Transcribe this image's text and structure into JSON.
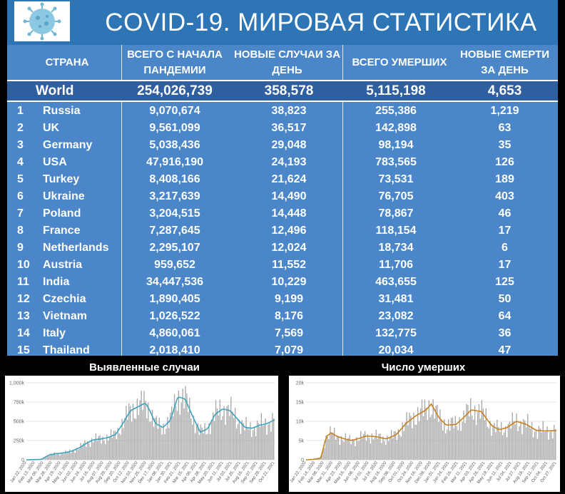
{
  "header": {
    "title": "COVID-19. МИРОВАЯ СТАТИСТИКА",
    "logo_icon": "coronavirus-icon"
  },
  "table": {
    "columns": [
      "СТРАНА",
      "ВСЕГО С НАЧАЛА ПАНДЕМИИ",
      "НОВЫЕ СЛУЧАИ ЗА ДЕНЬ",
      "ВСЕГО УМЕРШИХ",
      "НОВЫЕ СМЕРТИ ЗА ДЕНЬ"
    ],
    "world": {
      "country": "World",
      "total": "254,026,739",
      "new": "358,578",
      "deaths": "5,115,198",
      "new_deaths": "4,653"
    },
    "rows": [
      {
        "rank": "1",
        "country": "Russia",
        "total": "9,070,674",
        "new": "38,823",
        "deaths": "255,386",
        "new_deaths": "1,219"
      },
      {
        "rank": "2",
        "country": "UK",
        "total": "9,561,099",
        "new": "36,517",
        "deaths": "142,898",
        "new_deaths": "63"
      },
      {
        "rank": "3",
        "country": "Germany",
        "total": "5,038,436",
        "new": "29,048",
        "deaths": "98,194",
        "new_deaths": "35"
      },
      {
        "rank": "4",
        "country": "USA",
        "total": "47,916,190",
        "new": "24,193",
        "deaths": "783,565",
        "new_deaths": "126"
      },
      {
        "rank": "5",
        "country": "Turkey",
        "total": "8,408,166",
        "new": "21,624",
        "deaths": "73,531",
        "new_deaths": "189"
      },
      {
        "rank": "6",
        "country": "Ukraine",
        "total": "3,217,639",
        "new": "14,490",
        "deaths": "76,705",
        "new_deaths": "403"
      },
      {
        "rank": "7",
        "country": "Poland",
        "total": "3,204,515",
        "new": "14,448",
        "deaths": "78,867",
        "new_deaths": "46"
      },
      {
        "rank": "8",
        "country": "France",
        "total": "7,287,645",
        "new": "12,496",
        "deaths": "118,154",
        "new_deaths": "17"
      },
      {
        "rank": "9",
        "country": "Netherlands",
        "total": "2,295,107",
        "new": "12,024",
        "deaths": "18,734",
        "new_deaths": "6"
      },
      {
        "rank": "10",
        "country": "Austria",
        "total": "959,652",
        "new": "11,552",
        "deaths": "11,706",
        "new_deaths": "17"
      },
      {
        "rank": "11",
        "country": "India",
        "total": "34,447,536",
        "new": "10,229",
        "deaths": "463,655",
        "new_deaths": "125"
      },
      {
        "rank": "12",
        "country": "Czechia",
        "total": "1,890,405",
        "new": "9,199",
        "deaths": "31,481",
        "new_deaths": "50"
      },
      {
        "rank": "13",
        "country": "Vietnam",
        "total": "1,026,522",
        "new": "8,176",
        "deaths": "23,082",
        "new_deaths": "64"
      },
      {
        "rank": "14",
        "country": "Italy",
        "total": "4,860,061",
        "new": "7,569",
        "deaths": "132,775",
        "new_deaths": "36"
      },
      {
        "rank": "15",
        "country": "Thailand",
        "total": "2,018,410",
        "new": "7,079",
        "deaths": "20,034",
        "new_deaths": "47"
      }
    ]
  },
  "colors": {
    "header_bg": "#2E75B6",
    "table_bg": "#4A86C8",
    "world_bg": "#2F5F9E",
    "bar": "#A9A9A9",
    "cases_line": "#3BA3C2",
    "deaths_line": "#C8811E"
  },
  "chart_data": [
    {
      "type": "bar",
      "title": "Выявленные случаи",
      "yticks": [
        "0",
        "250k",
        "500k",
        "750k",
        "1,000k"
      ],
      "ylim": [
        0,
        1000000
      ],
      "xticks": [
        "Jan 22, 2020",
        "Feb 13, 2020",
        "Mar 06, 2020",
        "Mar 28, 2020",
        "Apr 19, 2020",
        "May 11, 2020",
        "Jun 02, 2020",
        "Jun 24, 2020",
        "Jul 16, 2020",
        "Aug 07, 2020",
        "Aug 29, 2020",
        "Sep 20, 2020",
        "Oct 12, 2020",
        "Nov 03, 2020",
        "Nov 25, 2020",
        "Dec 17, 2020",
        "Jan 08, 2021",
        "Jan 30, 2021",
        "Feb 21, 2021",
        "Mar 15, 2021",
        "Apr 06, 2021",
        "Apr 28, 2021",
        "May 20, 2021",
        "Jun 11, 2021",
        "Jul 03, 2021",
        "Jul 25, 2021",
        "Aug 16, 2021",
        "Sep 07, 2021",
        "Sep 29, 2021",
        "Oct 21, 2021"
      ],
      "x": [
        0,
        0.03,
        0.06,
        0.09,
        0.12,
        0.15,
        0.18,
        0.21,
        0.24,
        0.27,
        0.3,
        0.33,
        0.36,
        0.39,
        0.42,
        0.45,
        0.48,
        0.5,
        0.52,
        0.55,
        0.58,
        0.61,
        0.64,
        0.67,
        0.7,
        0.73,
        0.76,
        0.79,
        0.82,
        0.85,
        0.88,
        0.91,
        0.94,
        0.97,
        1
      ],
      "values": [
        0,
        2000,
        5000,
        60000,
        80000,
        90000,
        110000,
        150000,
        210000,
        260000,
        270000,
        290000,
        330000,
        480000,
        640000,
        690000,
        740000,
        620000,
        470000,
        420000,
        510000,
        820000,
        790000,
        560000,
        360000,
        400000,
        590000,
        660000,
        640000,
        530000,
        420000,
        410000,
        450000,
        470000,
        520000
      ]
    },
    {
      "type": "bar",
      "title": "Число умерших",
      "yticks": [
        "0",
        "5k",
        "10k",
        "15k",
        "20k"
      ],
      "ylim": [
        0,
        20000
      ],
      "xticks": [
        "Jan 22, 2020",
        "Feb 14, 2020",
        "Mar 08, 2020",
        "Mar 31, 2020",
        "Apr 23, 2020",
        "May 16, 2020",
        "Jun 08, 2020",
        "Jul 01, 2020",
        "Jul 24, 2020",
        "Aug 16, 2020",
        "Sep 08, 2020",
        "Oct 01, 2020",
        "Oct 24, 2020",
        "Nov 16, 2020",
        "Dec 09, 2020",
        "Jan 01, 2021",
        "Jan 24, 2021",
        "Feb 16, 2021",
        "Mar 11, 2021",
        "Apr 03, 2021",
        "Apr 26, 2021",
        "May 19, 2021",
        "Jun 11, 2021",
        "Jul 04, 2021",
        "Jul 27, 2021",
        "Aug 19, 2021",
        "Sep 11, 2021",
        "Oct 04, 2021",
        "Oct 27, 2021"
      ],
      "x": [
        0,
        0.03,
        0.06,
        0.08,
        0.1,
        0.12,
        0.15,
        0.18,
        0.21,
        0.24,
        0.28,
        0.32,
        0.36,
        0.4,
        0.44,
        0.48,
        0.5,
        0.53,
        0.56,
        0.6,
        0.63,
        0.66,
        0.7,
        0.74,
        0.77,
        0.8,
        0.84,
        0.88,
        0.92,
        0.96,
        1
      ],
      "values": [
        0,
        100,
        500,
        6000,
        7000,
        6200,
        5500,
        5000,
        5500,
        6200,
        6000,
        5400,
        6500,
        9500,
        11500,
        13000,
        14500,
        11000,
        9000,
        9200,
        11000,
        13000,
        12500,
        9000,
        7800,
        8300,
        10000,
        9200,
        7600,
        7500,
        7600
      ]
    }
  ]
}
